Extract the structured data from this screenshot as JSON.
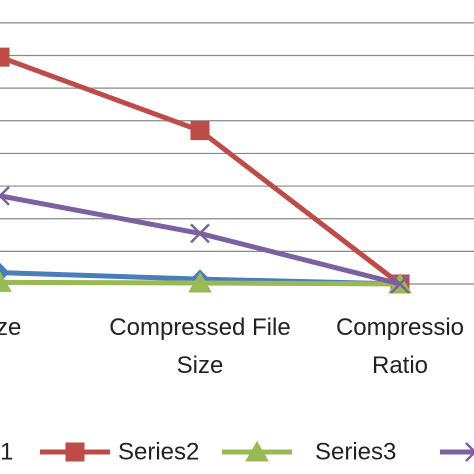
{
  "chart_data": {
    "type": "line",
    "categories": [
      "size",
      "Compressed File Size",
      "Compressio Ratio"
    ],
    "series": [
      {
        "name": "1",
        "color": "#4a7ebb",
        "marker": "diamond",
        "values": [
          0.35,
          0.15,
          0
        ]
      },
      {
        "name": "Series2",
        "color": "#be4b48",
        "marker": "square",
        "values": [
          6.95,
          4.7,
          0
        ]
      },
      {
        "name": "Series3",
        "color": "#98b954",
        "marker": "triangle",
        "values": [
          0.05,
          0.03,
          0
        ]
      },
      {
        "name": null,
        "color": "#7d60a0",
        "marker": "x",
        "values": [
          2.7,
          1.55,
          0
        ]
      }
    ],
    "ylim": [
      0,
      8.7
    ],
    "yticks": [
      0,
      1,
      2,
      3,
      4,
      5,
      6,
      7,
      8
    ],
    "grid": true
  }
}
